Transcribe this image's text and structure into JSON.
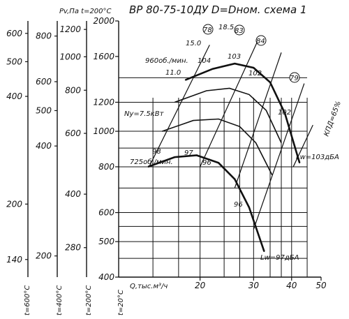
{
  "chart_data": {
    "type": "line",
    "title": "ВР 80-75-10ДУ D=Dном. схема 1",
    "x_axis": {
      "label": "Q,тыс.м³/ч",
      "scale": "log",
      "ticks": [
        20,
        30,
        40,
        50
      ],
      "range": [
        10.8,
        50
      ]
    },
    "y_axis": {
      "scale": "log",
      "range": [
        400,
        2000
      ],
      "ticks": [
        400,
        500,
        600,
        800,
        1000,
        1200,
        1600,
        2000
      ]
    },
    "auxiliary_scales": [
      {
        "label": "t=20°C",
        "ticks": [
          400,
          500,
          600,
          800,
          1000,
          1200,
          1600,
          2000
        ]
      },
      {
        "label": "Pv,Па  t=200°C",
        "ticks": [
          280,
          400,
          600,
          800,
          1000,
          1200
        ]
      },
      {
        "label": "t=400°C",
        "ticks": [
          200,
          400,
          500,
          600,
          800
        ]
      },
      {
        "label": "t=600°C",
        "ticks": [
          140,
          200,
          400,
          500,
          600
        ]
      }
    ],
    "series": [
      {
        "name": "960об./мин.",
        "x": [
          17.9,
          22,
          26,
          30,
          34,
          38,
          42.5
        ],
        "y": [
          1380,
          1480,
          1530,
          1490,
          1360,
          1120,
          820
        ]
      },
      {
        "name": "725об./мин.",
        "x": [
          13.5,
          16.5,
          19.5,
          23,
          26,
          29,
          32.5
        ],
        "y": [
          800,
          850,
          860,
          820,
          740,
          620,
          470
        ]
      }
    ],
    "efficiency_label": "КПД=65%",
    "efficiency_values": [
      "78",
      "83",
      "84",
      "79"
    ],
    "speed_values": [
      "11.0",
      "15.0",
      "18.5"
    ],
    "power_values": [
      "7.5кВт"
    ],
    "point_labels": [
      "104",
      "103",
      "102",
      "102",
      "98",
      "97",
      "96",
      "96"
    ],
    "power_label": "Ny=7.5кВт",
    "noise_labels": [
      "Lw=103дБА",
      "Lw=97дБА"
    ],
    "grid": true
  }
}
